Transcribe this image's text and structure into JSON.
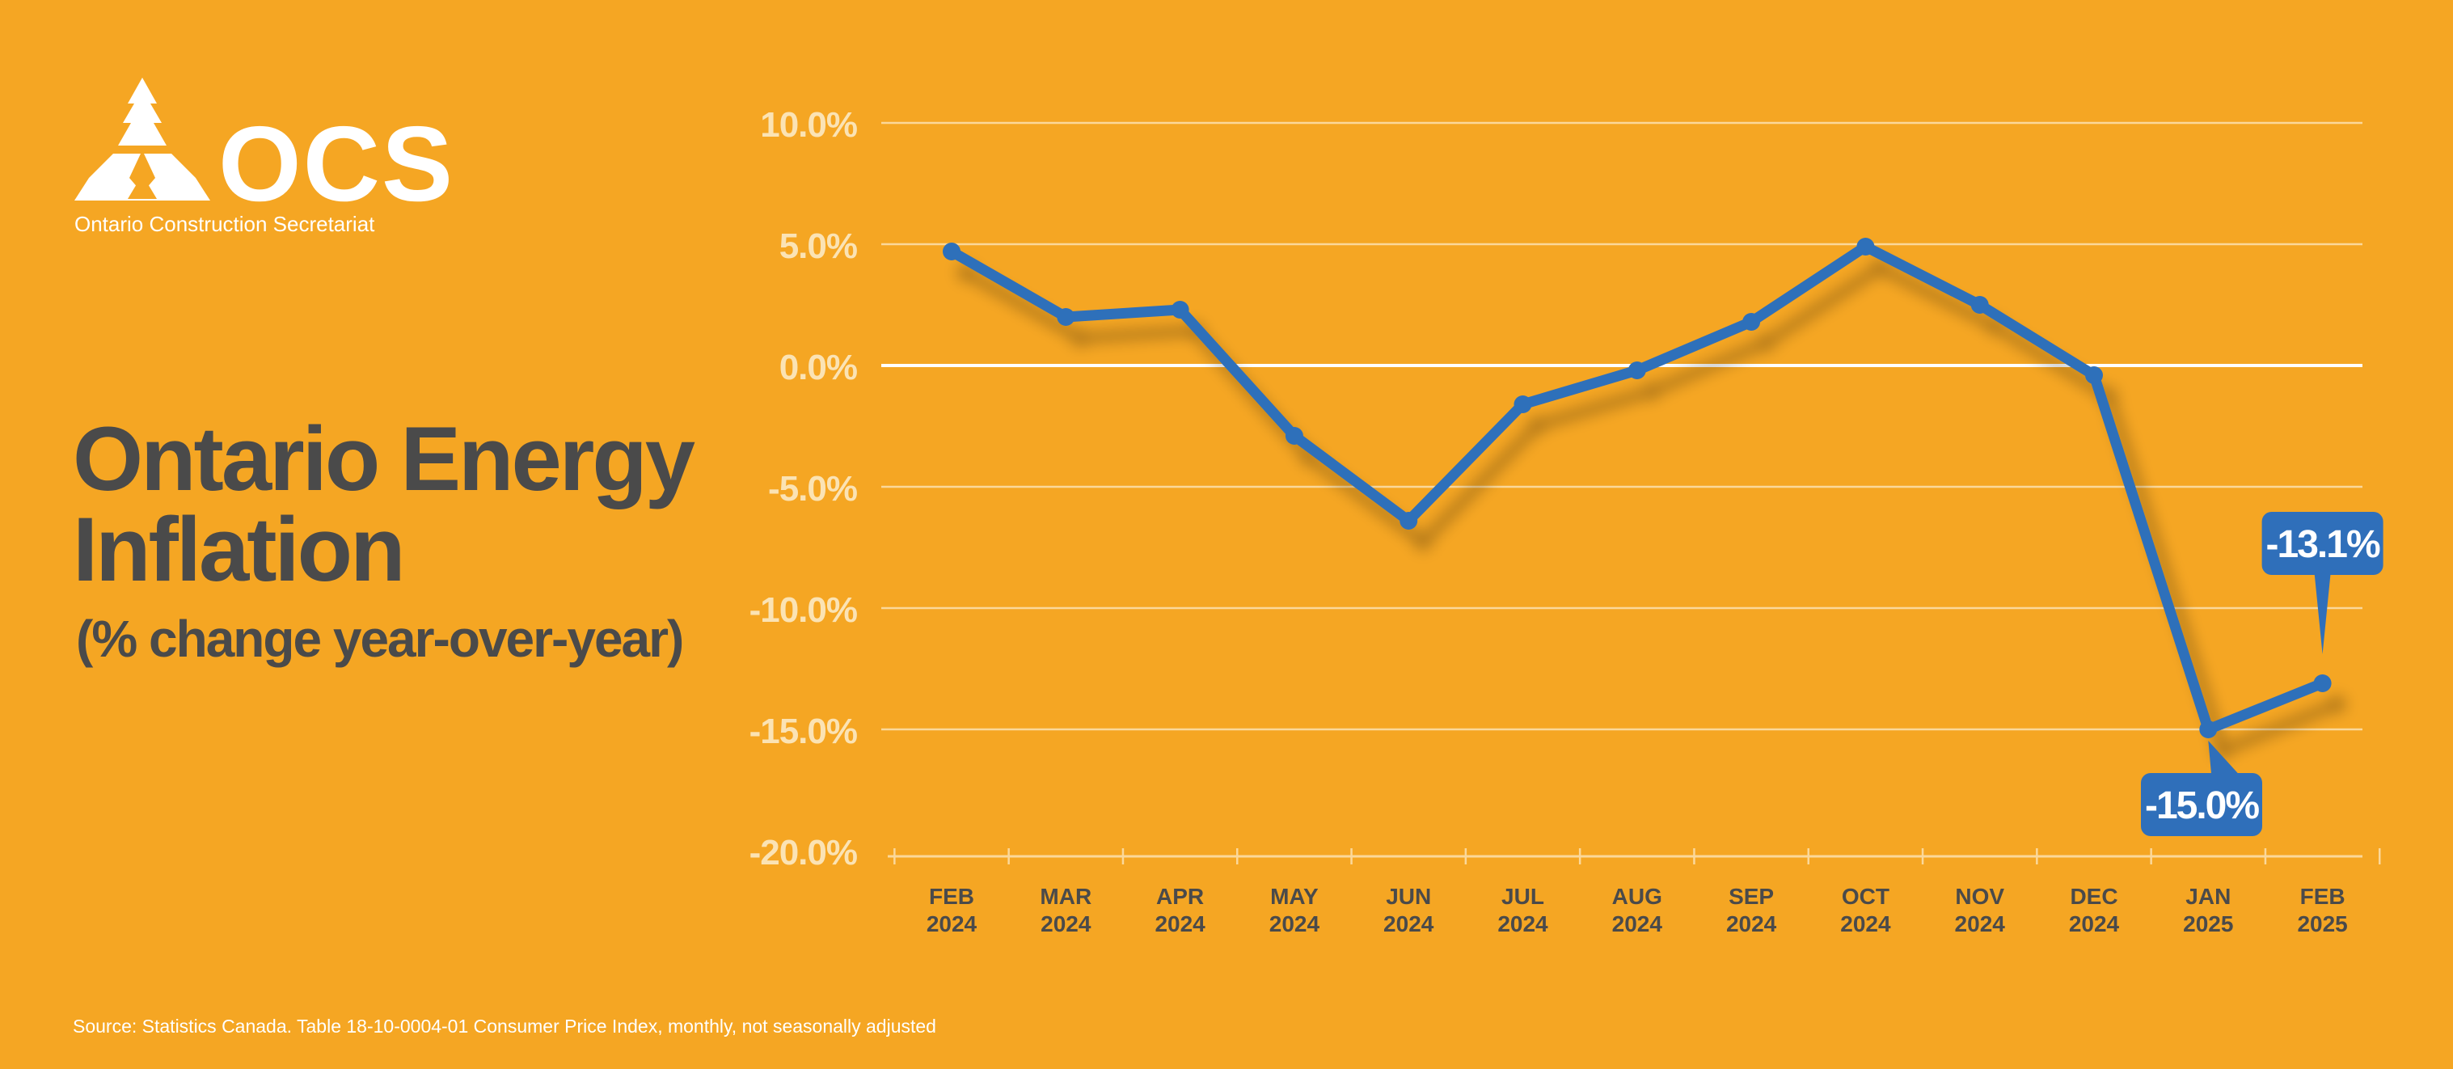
{
  "colors": {
    "background": "#f5a623",
    "line": "#2f6fba",
    "title_text": "#4a4a4a",
    "axis_text": "#4a4a4a",
    "ytick_text": "#fbe3b4",
    "grid": "#fbd89a",
    "white": "#ffffff"
  },
  "logo": {
    "wordmark": "OCS",
    "org_name": "Ontario Construction Secretariat"
  },
  "title": "Ontario Energy Inflation",
  "subtitle": "(% change year-over-year)",
  "source": "Source: Statistics Canada. Table 18-10-0004-01  Consumer Price Index, monthly, not seasonally adjusted",
  "chart_data": {
    "type": "line",
    "categories": [
      [
        "FEB",
        "2024"
      ],
      [
        "MAR",
        "2024"
      ],
      [
        "APR",
        "2024"
      ],
      [
        "MAY",
        "2024"
      ],
      [
        "JUN",
        "2024"
      ],
      [
        "JUL",
        "2024"
      ],
      [
        "AUG",
        "2024"
      ],
      [
        "SEP",
        "2024"
      ],
      [
        "OCT",
        "2024"
      ],
      [
        "NOV",
        "2024"
      ],
      [
        "DEC",
        "2024"
      ],
      [
        "JAN",
        "2025"
      ],
      [
        "FEB",
        "2025"
      ]
    ],
    "values": [
      4.7,
      2.0,
      2.3,
      -2.9,
      -6.4,
      -1.6,
      -0.2,
      1.8,
      4.9,
      2.5,
      -0.4,
      -15.0,
      -13.1
    ],
    "yticks": [
      10,
      5,
      0,
      -5,
      -10,
      -15,
      -20
    ],
    "ytick_labels": [
      "10.0%",
      "5.0%",
      "0.0%",
      "-5.0%",
      "-10.0%",
      "-15.0%",
      "-20.0%"
    ],
    "ylim": [
      -20,
      10
    ],
    "grid": true,
    "callouts": [
      {
        "index": 12,
        "label": "-13.1%",
        "placement": "above"
      },
      {
        "index": 11,
        "label": "-15.0%",
        "placement": "below"
      }
    ]
  }
}
